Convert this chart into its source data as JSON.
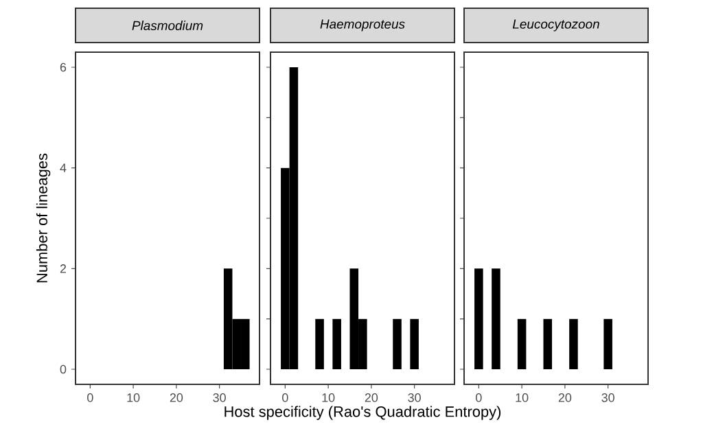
{
  "chart_data": [
    {
      "type": "histogram",
      "title": "Plasmodium",
      "ylabel": "Number of lineages",
      "bins": [
        -1,
        1,
        3,
        5,
        7,
        9,
        11,
        13,
        15,
        17,
        19,
        21,
        23,
        25,
        27,
        29,
        31,
        33,
        35,
        37
      ],
      "values": [
        0,
        0,
        0,
        0,
        0,
        0,
        0,
        0,
        0,
        0,
        0,
        0,
        0,
        0,
        0,
        0,
        2,
        1,
        1
      ],
      "color": "#000000",
      "xlim": [
        -3.4,
        39.3
      ],
      "ylim": [
        -0.3,
        6.3
      ],
      "xticks": [
        0,
        10,
        20,
        30
      ],
      "yticks": [
        0,
        2,
        4,
        6
      ]
    },
    {
      "type": "histogram",
      "title": "Haemoproteus",
      "xlabel": "Host specificity (Rao's Quadratic Entropy)",
      "bins": [
        -1,
        1,
        3,
        5,
        7,
        9,
        11,
        13,
        15,
        17,
        19,
        21,
        23,
        25,
        27,
        29,
        31,
        33,
        35,
        37
      ],
      "values": [
        4,
        6,
        0,
        0,
        1,
        0,
        1,
        0,
        2,
        1,
        0,
        0,
        0,
        1,
        0,
        1,
        0,
        0,
        0
      ],
      "color": "#000000",
      "xlim": [
        -3.4,
        39.3
      ],
      "ylim": [
        -0.3,
        6.3
      ],
      "xticks": [
        0,
        10,
        20,
        30
      ],
      "tick_labels": "x"
    },
    {
      "type": "histogram",
      "title": "Leucocytozoon",
      "bins": [
        -1,
        1,
        3,
        5,
        7,
        9,
        11,
        13,
        15,
        17,
        19,
        21,
        23,
        25,
        27,
        29,
        31,
        33,
        35,
        37
      ],
      "values": [
        2,
        0,
        2,
        0,
        0,
        1,
        0,
        0,
        1,
        0,
        0,
        1,
        0,
        0,
        0,
        1,
        0,
        0,
        0
      ],
      "color": "#000000",
      "xlim": [
        -3.4,
        39.3
      ],
      "ylim": [
        -0.3,
        6.3
      ],
      "xticks": [
        0,
        10,
        20,
        30
      ],
      "tick_labels": "x"
    }
  ]
}
